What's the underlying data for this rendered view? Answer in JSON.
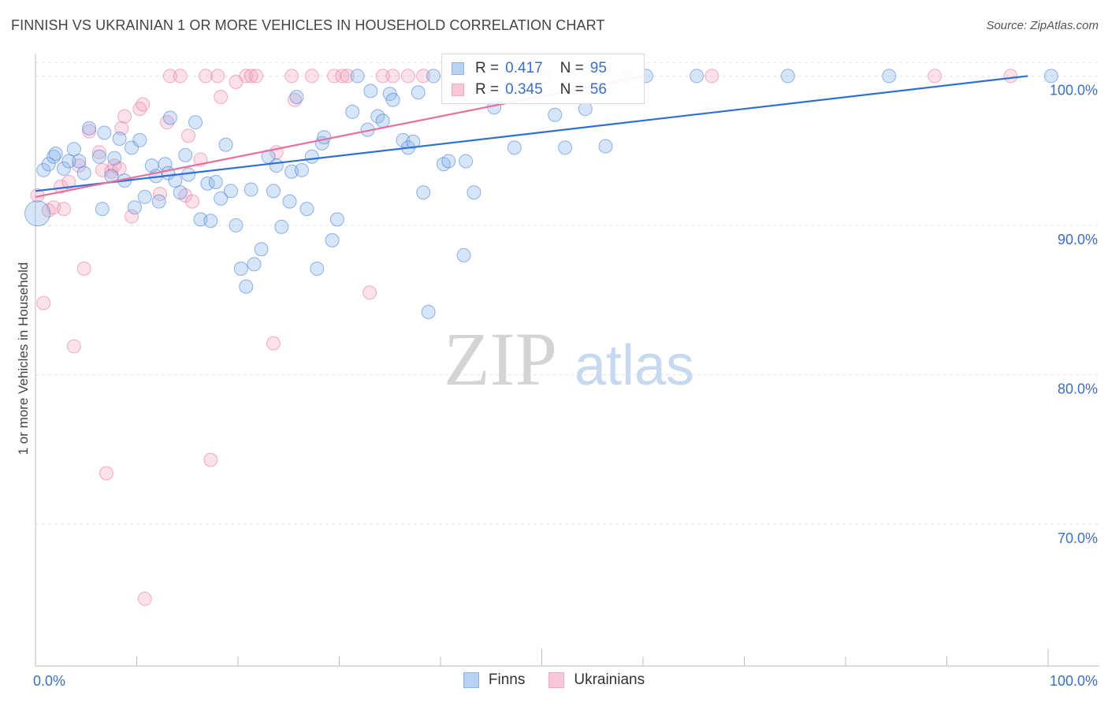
{
  "title": "FINNISH VS UKRAINIAN 1 OR MORE VEHICLES IN HOUSEHOLD CORRELATION CHART",
  "source": "Source: ZipAtlas.com",
  "watermark": {
    "zip": "ZIP",
    "atlas": "atlas"
  },
  "legend": {
    "finns": {
      "r_label": "R =",
      "r_value": "0.417",
      "n_label": "N =",
      "n_value": "95"
    },
    "ukrainians": {
      "r_label": "R =",
      "r_value": "0.345",
      "n_label": "N =",
      "n_value": "56"
    }
  },
  "bottom_legend": {
    "finns": "Finns",
    "ukrainians": "Ukrainians"
  },
  "colors": {
    "finns": "#8ab4e8",
    "finns_line": "#2f6fd6",
    "ukrainians": "#f2a9c3",
    "ukrainians_line": "#e8719b",
    "axis_text": "#3a6fc4"
  },
  "chart_data": {
    "type": "scatter",
    "title": "FINNISH VS UKRAINIAN 1 OR MORE VEHICLES IN HOUSEHOLD CORRELATION CHART",
    "xlabel": "",
    "ylabel": "1 or more Vehicles in Household",
    "xlim": [
      0,
      100
    ],
    "ylim": [
      60.5,
      101.5
    ],
    "x_tick_labels": [
      "0.0%",
      "100.0%"
    ],
    "y_ticks": [
      100,
      90,
      80,
      70
    ],
    "y_tick_labels": [
      "100.0%",
      "90.0%",
      "80.0%",
      "70.0%"
    ],
    "series": [
      {
        "name": "Finns",
        "trend": [
          [
            0,
            92.3
          ],
          [
            98,
            100.0
          ]
        ],
        "points": [
          [
            0.2,
            90.8
          ],
          [
            0.8,
            93.7
          ],
          [
            1.3,
            94.1
          ],
          [
            1.8,
            94.6
          ],
          [
            2.0,
            94.8
          ],
          [
            2.8,
            93.8
          ],
          [
            3.3,
            94.3
          ],
          [
            3.8,
            95.1
          ],
          [
            4.3,
            94.3
          ],
          [
            4.8,
            93.5
          ],
          [
            5.3,
            96.5
          ],
          [
            6.3,
            94.6
          ],
          [
            6.6,
            91.1
          ],
          [
            6.8,
            96.2
          ],
          [
            7.5,
            93.3
          ],
          [
            7.8,
            94.5
          ],
          [
            8.3,
            95.8
          ],
          [
            8.8,
            93.0
          ],
          [
            9.5,
            95.2
          ],
          [
            9.8,
            91.2
          ],
          [
            10.3,
            95.7
          ],
          [
            10.8,
            91.9
          ],
          [
            11.5,
            94.0
          ],
          [
            11.9,
            93.3
          ],
          [
            12.2,
            91.6
          ],
          [
            12.8,
            94.1
          ],
          [
            13.1,
            93.5
          ],
          [
            13.3,
            97.2
          ],
          [
            13.8,
            93.0
          ],
          [
            14.3,
            92.2
          ],
          [
            14.8,
            94.7
          ],
          [
            15.1,
            93.4
          ],
          [
            15.8,
            96.9
          ],
          [
            16.3,
            90.4
          ],
          [
            17.0,
            92.8
          ],
          [
            17.3,
            90.3
          ],
          [
            17.8,
            92.9
          ],
          [
            18.3,
            91.8
          ],
          [
            18.8,
            95.4
          ],
          [
            19.3,
            92.3
          ],
          [
            19.8,
            90.0
          ],
          [
            20.3,
            87.1
          ],
          [
            20.8,
            85.9
          ],
          [
            21.3,
            92.4
          ],
          [
            21.6,
            87.4
          ],
          [
            22.3,
            88.4
          ],
          [
            23.0,
            94.6
          ],
          [
            23.5,
            92.3
          ],
          [
            23.8,
            94.0
          ],
          [
            24.3,
            89.9
          ],
          [
            25.1,
            91.6
          ],
          [
            25.3,
            93.6
          ],
          [
            25.8,
            98.6
          ],
          [
            26.3,
            93.7
          ],
          [
            26.8,
            91.1
          ],
          [
            27.3,
            94.6
          ],
          [
            27.8,
            87.1
          ],
          [
            28.3,
            95.5
          ],
          [
            28.5,
            95.9
          ],
          [
            29.3,
            89.0
          ],
          [
            29.8,
            90.4
          ],
          [
            31.3,
            97.6
          ],
          [
            31.8,
            100.0
          ],
          [
            32.8,
            96.4
          ],
          [
            33.1,
            99.0
          ],
          [
            33.8,
            97.3
          ],
          [
            34.3,
            97.0
          ],
          [
            35.0,
            98.8
          ],
          [
            35.3,
            98.4
          ],
          [
            36.3,
            95.7
          ],
          [
            36.8,
            95.2
          ],
          [
            37.3,
            95.6
          ],
          [
            37.8,
            98.9
          ],
          [
            38.3,
            92.2
          ],
          [
            38.8,
            84.2
          ],
          [
            39.3,
            100.0
          ],
          [
            40.3,
            94.1
          ],
          [
            40.8,
            94.3
          ],
          [
            42.3,
            88.0
          ],
          [
            42.5,
            94.3
          ],
          [
            43.3,
            92.2
          ],
          [
            45.3,
            97.9
          ],
          [
            46.3,
            100.0
          ],
          [
            47.3,
            95.2
          ],
          [
            50.3,
            100.0
          ],
          [
            51.3,
            97.4
          ],
          [
            52.3,
            95.2
          ],
          [
            54.3,
            97.8
          ],
          [
            56.3,
            95.3
          ],
          [
            58.3,
            100.0
          ],
          [
            60.3,
            100.0
          ],
          [
            65.3,
            100.0
          ],
          [
            74.3,
            100.0
          ],
          [
            84.3,
            100.0
          ],
          [
            100.3,
            100.0
          ]
        ]
      },
      {
        "name": "Ukrainians",
        "trend": [
          [
            0,
            91.9
          ],
          [
            60,
            100.0
          ]
        ],
        "points": [
          [
            0.2,
            92.0
          ],
          [
            0.8,
            84.8
          ],
          [
            1.3,
            91.0
          ],
          [
            1.8,
            91.2
          ],
          [
            2.5,
            92.6
          ],
          [
            2.8,
            91.1
          ],
          [
            3.3,
            92.9
          ],
          [
            3.8,
            81.9
          ],
          [
            4.3,
            94.0
          ],
          [
            4.8,
            87.1
          ],
          [
            5.3,
            96.3
          ],
          [
            6.3,
            94.9
          ],
          [
            6.6,
            93.7
          ],
          [
            7.0,
            73.4
          ],
          [
            7.5,
            93.6
          ],
          [
            7.8,
            94.0
          ],
          [
            8.3,
            93.8
          ],
          [
            8.5,
            96.5
          ],
          [
            8.8,
            97.3
          ],
          [
            9.5,
            90.6
          ],
          [
            10.3,
            97.8
          ],
          [
            10.6,
            98.1
          ],
          [
            10.8,
            65.0
          ],
          [
            12.3,
            92.1
          ],
          [
            13.0,
            96.9
          ],
          [
            13.3,
            100.0
          ],
          [
            14.3,
            100.0
          ],
          [
            14.8,
            92.0
          ],
          [
            15.1,
            96.0
          ],
          [
            15.5,
            91.6
          ],
          [
            16.3,
            94.4
          ],
          [
            16.8,
            100.0
          ],
          [
            17.3,
            74.3
          ],
          [
            18.0,
            100.0
          ],
          [
            18.3,
            98.6
          ],
          [
            19.8,
            99.6
          ],
          [
            20.8,
            100.0
          ],
          [
            21.3,
            100.0
          ],
          [
            21.8,
            100.0
          ],
          [
            23.5,
            82.1
          ],
          [
            23.8,
            94.9
          ],
          [
            25.3,
            100.0
          ],
          [
            25.6,
            98.4
          ],
          [
            27.3,
            100.0
          ],
          [
            29.5,
            100.0
          ],
          [
            30.3,
            100.0
          ],
          [
            30.8,
            100.0
          ],
          [
            33.0,
            85.5
          ],
          [
            34.3,
            100.0
          ],
          [
            35.3,
            100.0
          ],
          [
            36.8,
            100.0
          ],
          [
            38.3,
            100.0
          ],
          [
            52.8,
            100.0
          ],
          [
            66.8,
            100.0
          ],
          [
            88.8,
            100.0
          ],
          [
            96.3,
            100.0
          ]
        ]
      }
    ]
  }
}
